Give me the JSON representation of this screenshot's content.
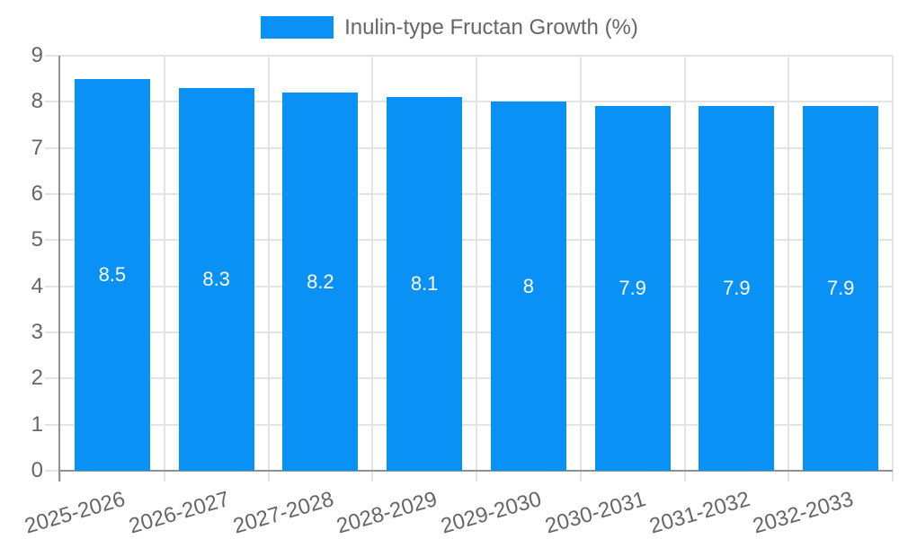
{
  "legend": {
    "label": "Inulin-type Fructan Growth (%)"
  },
  "chart_data": {
    "type": "bar",
    "title": "",
    "categories": [
      "2025-2026",
      "2026-2027",
      "2027-2028",
      "2028-2029",
      "2029-2030",
      "2030-2031",
      "2031-2032",
      "2032-2033"
    ],
    "values": [
      8.5,
      8.3,
      8.2,
      8.1,
      8,
      7.9,
      7.9,
      7.9
    ],
    "value_labels": [
      "8.5",
      "8.3",
      "8.2",
      "8.1",
      "8",
      "7.9",
      "7.9",
      "7.9"
    ],
    "series_name": "Inulin-type Fructan Growth (%)",
    "xlabel": "",
    "ylabel": "",
    "ylim": [
      0,
      9
    ],
    "yticks": [
      0,
      1,
      2,
      3,
      4,
      5,
      6,
      7,
      8,
      9
    ],
    "grid": true,
    "legend_position": "top",
    "colors": {
      "bar": "#0a91f5",
      "value_label": "#ffffff",
      "axis_text": "#666666",
      "grid_line": "#e3e3e3",
      "axis_line": "#919191"
    }
  }
}
